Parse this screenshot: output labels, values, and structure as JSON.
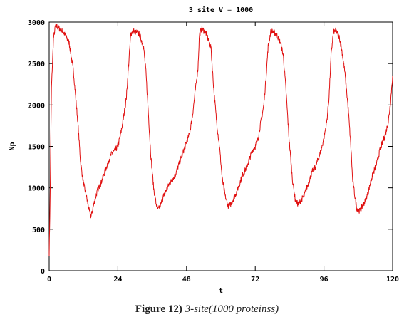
{
  "chart_data": {
    "type": "line",
    "title": "3 site V = 1000",
    "xlabel": "t",
    "ylabel": "Np",
    "xlim": [
      0,
      120
    ],
    "ylim": [
      0,
      3000
    ],
    "x_ticks": [
      0,
      24,
      48,
      72,
      96,
      120
    ],
    "y_ticks": [
      0,
      500,
      1000,
      1500,
      2000,
      2500,
      3000
    ],
    "grid": false,
    "series_color": "#e01010",
    "series": [
      {
        "x": [
          0,
          0.3,
          0.8,
          1.5,
          2.2,
          2.8,
          3.5,
          5,
          7,
          8.5,
          10,
          11,
          12,
          13,
          14,
          14.6,
          15.2,
          16,
          17,
          18,
          19,
          20,
          21,
          22,
          23,
          24,
          25,
          26,
          27,
          27.8,
          28.5,
          29.3,
          30,
          31.5,
          33,
          33.8,
          34.5,
          35.5,
          36.5,
          37.3,
          38,
          39,
          40,
          41,
          42,
          43,
          44,
          45,
          46,
          47,
          48,
          49,
          50,
          51,
          52,
          52.5,
          53.3,
          54,
          55,
          56.5,
          57.5,
          58.5,
          59.5,
          60.5,
          61.5,
          62.5,
          63.5,
          64.5,
          65.5,
          66.5,
          67.5,
          69,
          70,
          71,
          72,
          73,
          74,
          75,
          75.7,
          76.5,
          77.5,
          79.5,
          80.8,
          81.8,
          82.7,
          83.8,
          85,
          86,
          87,
          88,
          89,
          90,
          91,
          92,
          93,
          94,
          95,
          96,
          97,
          97.8,
          98.5,
          99.3,
          100.2,
          101.5,
          102.3,
          103.3,
          104.5,
          105.5,
          106,
          106.8,
          107.5,
          108.5,
          109.5,
          110.5,
          111.5,
          112.5,
          113.5,
          114.5,
          115.5,
          116.5,
          117.5,
          118.5,
          119.3,
          120
        ],
        "y": [
          210,
          800,
          2200,
          2800,
          2950,
          2950,
          2920,
          2880,
          2750,
          2400,
          1800,
          1300,
          1050,
          900,
          720,
          650,
          740,
          860,
          980,
          1050,
          1150,
          1250,
          1350,
          1420,
          1450,
          1500,
          1650,
          1850,
          2100,
          2500,
          2850,
          2900,
          2880,
          2860,
          2700,
          2400,
          2000,
          1400,
          1000,
          820,
          730,
          800,
          900,
          980,
          1050,
          1100,
          1150,
          1250,
          1350,
          1450,
          1550,
          1650,
          1850,
          2150,
          2450,
          2850,
          2920,
          2900,
          2850,
          2700,
          2200,
          1800,
          1500,
          1100,
          900,
          780,
          800,
          880,
          950,
          1050,
          1150,
          1250,
          1350,
          1450,
          1500,
          1600,
          1800,
          2000,
          2300,
          2700,
          2900,
          2850,
          2750,
          2600,
          2200,
          1600,
          1100,
          850,
          800,
          850,
          900,
          1000,
          1100,
          1200,
          1250,
          1350,
          1450,
          1600,
          1800,
          2100,
          2600,
          2880,
          2900,
          2800,
          2650,
          2400,
          1950,
          1450,
          1100,
          900,
          750,
          720,
          780,
          850,
          950,
          1100,
          1200,
          1300,
          1450,
          1550,
          1650,
          1800,
          2050,
          2350
        ]
      }
    ]
  },
  "caption": {
    "label": "Figure 12)",
    "text": "3-site(1000 proteinss)"
  }
}
